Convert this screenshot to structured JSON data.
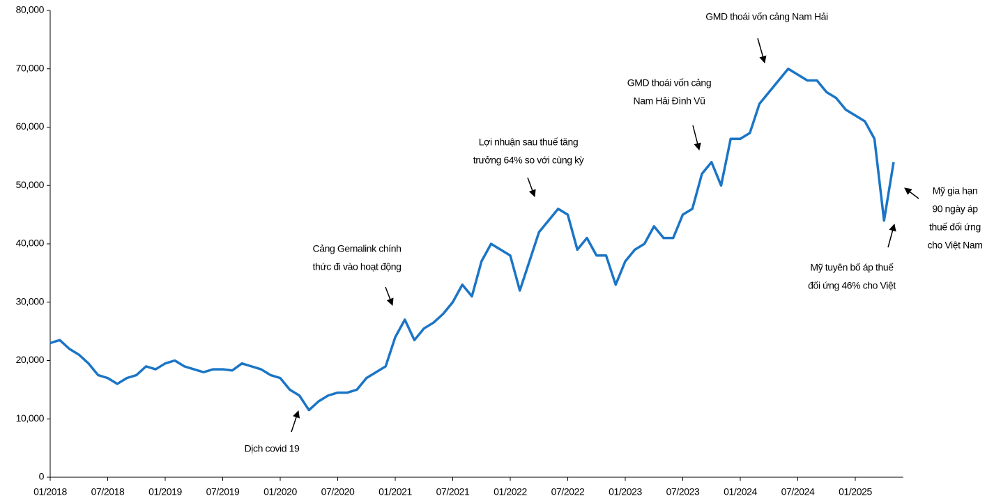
{
  "chart_data": {
    "type": "line",
    "x": [
      "01/2018",
      "02/2018",
      "03/2018",
      "04/2018",
      "05/2018",
      "06/2018",
      "07/2018",
      "08/2018",
      "09/2018",
      "10/2018",
      "11/2018",
      "12/2018",
      "01/2019",
      "02/2019",
      "03/2019",
      "04/2019",
      "05/2019",
      "06/2019",
      "07/2019",
      "08/2019",
      "09/2019",
      "10/2019",
      "11/2019",
      "12/2019",
      "01/2020",
      "02/2020",
      "03/2020",
      "04/2020",
      "05/2020",
      "06/2020",
      "07/2020",
      "08/2020",
      "09/2020",
      "10/2020",
      "11/2020",
      "12/2020",
      "01/2021",
      "02/2021",
      "03/2021",
      "04/2021",
      "05/2021",
      "06/2021",
      "07/2021",
      "08/2021",
      "09/2021",
      "10/2021",
      "11/2021",
      "12/2021",
      "01/2022",
      "02/2022",
      "03/2022",
      "04/2022",
      "05/2022",
      "06/2022",
      "07/2022",
      "08/2022",
      "09/2022",
      "10/2022",
      "11/2022",
      "12/2022",
      "01/2023",
      "02/2023",
      "03/2023",
      "04/2023",
      "05/2023",
      "06/2023",
      "07/2023",
      "08/2023",
      "09/2023",
      "10/2023",
      "11/2023",
      "12/2023",
      "01/2024",
      "02/2024",
      "03/2024",
      "04/2024",
      "05/2024",
      "06/2024",
      "07/2024",
      "08/2024",
      "09/2024",
      "10/2024",
      "11/2024",
      "12/2024",
      "01/2025",
      "02/2025",
      "03/2025",
      "04/2025",
      "05/2025"
    ],
    "series": [
      {
        "name": "GMD",
        "color": "#1b75c6",
        "values": [
          23000,
          23500,
          22000,
          21000,
          19500,
          17500,
          17000,
          16000,
          17000,
          17500,
          19000,
          18500,
          19500,
          20000,
          19000,
          18500,
          18000,
          18500,
          18500,
          18300,
          19500,
          19000,
          18500,
          17500,
          17000,
          15000,
          14000,
          11500,
          13000,
          14000,
          14500,
          14500,
          15000,
          17000,
          18000,
          19000,
          24000,
          27000,
          23500,
          25500,
          26500,
          28000,
          30000,
          33000,
          31000,
          37000,
          40000,
          39000,
          38000,
          32000,
          37000,
          42000,
          44000,
          46000,
          45000,
          39000,
          41000,
          38000,
          38000,
          33000,
          37000,
          39000,
          40000,
          43000,
          41000,
          41000,
          45000,
          46000,
          52000,
          54000,
          50000,
          58000,
          58000,
          59000,
          64000,
          66000,
          68000,
          70000,
          69000,
          68000,
          68000,
          66000,
          65000,
          63000,
          62000,
          61000,
          58000,
          44000,
          54000
        ]
      }
    ],
    "xlim": [
      "01/2018",
      "06/2025"
    ],
    "xticks": [
      "01/2018",
      "07/2018",
      "01/2019",
      "07/2019",
      "01/2020",
      "07/2020",
      "01/2021",
      "07/2021",
      "01/2022",
      "07/2022",
      "01/2023",
      "07/2023",
      "01/2024",
      "07/2024",
      "01/2025"
    ],
    "ylim": [
      0,
      80000
    ],
    "yticks": [
      0,
      {
        "value": 10000,
        "label": "10,000"
      },
      {
        "value": 20000,
        "label": "20,000"
      },
      {
        "value": 30000,
        "label": "30,000"
      },
      {
        "value": 40000,
        "label": "40,000"
      },
      {
        "value": 50000,
        "label": "50,000"
      },
      {
        "value": 60000,
        "label": "60,000"
      },
      {
        "value": 70000,
        "label": "70,000"
      },
      {
        "value": 80000,
        "label": "80,000"
      }
    ],
    "annotations": [
      {
        "text": [
          "Dịch covid 19"
        ]
      },
      {
        "text": [
          "Cảng Gemalink chính",
          "thức đi vào hoạt động"
        ]
      },
      {
        "text": [
          "Lợi nhuận sau thuế tăng",
          "trưởng 64% so với cùng kỳ"
        ]
      },
      {
        "text": [
          "GMD thoái vốn cảng",
          "Nam Hải Đình Vũ"
        ]
      },
      {
        "text": [
          "GMD thoái vốn cảng Nam Hải"
        ]
      },
      {
        "text": [
          "Mỹ tuyên bố áp thuế",
          "đối ứng 46% cho Việt"
        ]
      },
      {
        "text": [
          "Mỹ gia hạn",
          "90 ngày áp",
          "thuế đối ứng",
          "cho Việt Nam"
        ]
      }
    ]
  }
}
